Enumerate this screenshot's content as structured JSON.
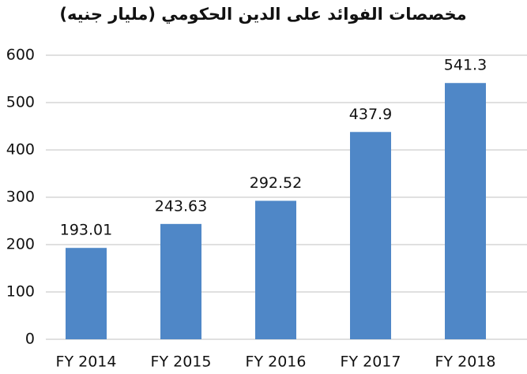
{
  "chart_data": {
    "type": "bar",
    "title": "مخصصات الفوائد على الدين الحكومي (مليار جنيه)",
    "categories": [
      "FY 2014",
      "FY 2015",
      "FY 2016",
      "FY 2017",
      "FY 2018"
    ],
    "values": [
      193.01,
      243.63,
      292.52,
      437.9,
      541.3
    ],
    "color": "#4f87c7",
    "ylim": [
      0,
      600
    ],
    "yticks": [
      0,
      100,
      200,
      300,
      400,
      500,
      600
    ],
    "grid": true
  }
}
